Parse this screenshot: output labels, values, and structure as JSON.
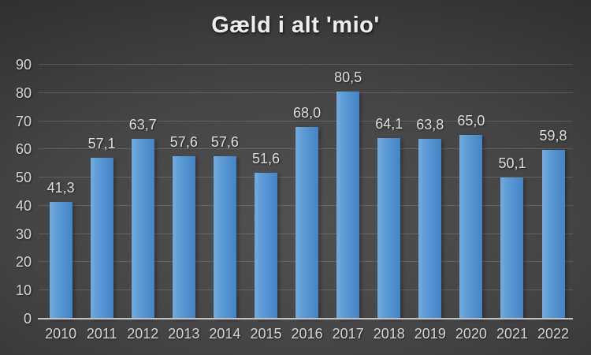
{
  "chart_data": {
    "type": "bar",
    "title": "Gæld i alt 'mio'",
    "categories": [
      "2010",
      "2011",
      "2012",
      "2013",
      "2014",
      "2015",
      "2016",
      "2017",
      "2018",
      "2019",
      "2020",
      "2021",
      "2022"
    ],
    "values": [
      41.3,
      57.1,
      63.7,
      57.6,
      57.6,
      51.6,
      68.0,
      80.5,
      64.1,
      63.8,
      65.0,
      50.1,
      59.8
    ],
    "value_labels": [
      "41,3",
      "57,1",
      "63,7",
      "57,6",
      "57,6",
      "51,6",
      "68,0",
      "80,5",
      "64,1",
      "63,8",
      "65,0",
      "50,1",
      "59,8"
    ],
    "xlabel": "",
    "ylabel": "",
    "ylim": [
      0,
      90
    ],
    "yticks": [
      0,
      10,
      20,
      30,
      40,
      50,
      60,
      70,
      80,
      90
    ],
    "grid": true,
    "legend": false,
    "decimal_separator": ",",
    "colors": {
      "bar_light": "#74abe0",
      "bar_mid": "#5b9bd5",
      "bar_dark": "#4583c7",
      "background_center": "#515151",
      "background_edge": "#262626",
      "gridline": "rgba(255,255,255,0.15)",
      "axis_line": "#c3c3c3",
      "text": "#d6d6d6",
      "label_text": "#dedede",
      "title_text": "#eeeeee"
    }
  }
}
